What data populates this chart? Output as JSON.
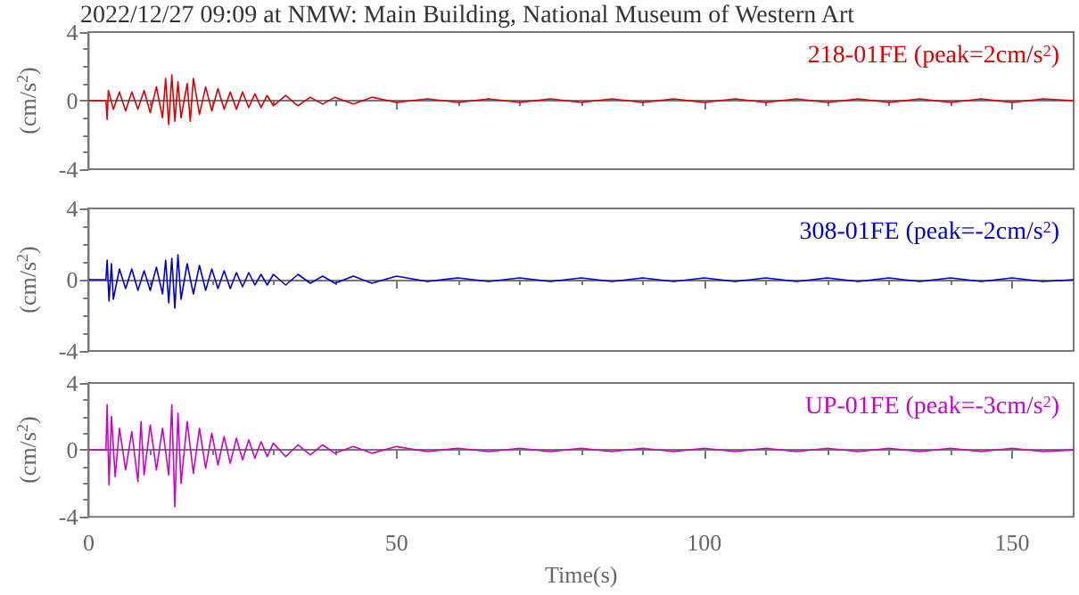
{
  "chart_data": [
    {
      "type": "line",
      "title": "2022/12/27 09:09 at NMW: Main Building, National Museum of Western Art",
      "ylabel": "(cm/s$^{2}$)",
      "xlim": [
        0,
        160
      ],
      "xticks": [
        0,
        50,
        100,
        150
      ],
      "ylim": [
        -4,
        4
      ],
      "yticks": [
        -4,
        0,
        4
      ],
      "tick_labels": "y",
      "legend": "top right",
      "marker": "none",
      "x": [
        0,
        2.8,
        3,
        3.2,
        4,
        5,
        6,
        7,
        8,
        9,
        10,
        11,
        12,
        12.5,
        13,
        13.5,
        14,
        14.5,
        15,
        16,
        16.5,
        17,
        18,
        19,
        20,
        21,
        22,
        23,
        24,
        25,
        26,
        27,
        28,
        29,
        30,
        32,
        34,
        36,
        38,
        40,
        43,
        46,
        50,
        55,
        60,
        65,
        70,
        75,
        80,
        85,
        90,
        95,
        100,
        105,
        110,
        115,
        120,
        125,
        130,
        135,
        140,
        145,
        150,
        155,
        160
      ],
      "series": [
        {
          "name": "218-01FE (peak=2cm/s$^{2}$)",
          "color": "#dd0000",
          "values": [
            0,
            0,
            -1.1,
            0.6,
            -0.5,
            0.5,
            -0.6,
            0.5,
            -0.5,
            0.6,
            -0.7,
            0.8,
            -1.0,
            1.3,
            -1.4,
            1.5,
            -1.2,
            1.1,
            -1.0,
            1.0,
            -1.2,
            1.3,
            -0.8,
            0.8,
            -0.6,
            0.7,
            -0.5,
            0.5,
            -0.5,
            0.5,
            -0.4,
            0.4,
            -0.4,
            0.3,
            -0.3,
            0.3,
            -0.3,
            0.2,
            -0.2,
            0.2,
            -0.2,
            0.2,
            -0.1,
            0.1,
            -0.1,
            0.1,
            -0.1,
            0.1,
            -0.1,
            0.1,
            -0.1,
            0.1,
            -0.1,
            0.1,
            -0.1,
            0.1,
            -0.1,
            0.1,
            -0.1,
            0.1,
            -0.1,
            0.1,
            -0.1,
            0.1,
            0
          ]
        }
      ]
    },
    {
      "type": "line",
      "ylabel": "(cm/s$^{2}$)",
      "xlim": [
        0,
        160
      ],
      "xticks": [
        0,
        50,
        100,
        150
      ],
      "ylim": [
        -4,
        4
      ],
      "yticks": [
        -4,
        0,
        4
      ],
      "tick_labels": "y",
      "legend": "top right",
      "marker": "none",
      "x": [
        0,
        2.8,
        3,
        3.3,
        3.7,
        4,
        5,
        6,
        7,
        8,
        9,
        10,
        11,
        12,
        12.5,
        13,
        13.5,
        14,
        14.5,
        15,
        16,
        17,
        18,
        19,
        20,
        21,
        22,
        23,
        24,
        25,
        26,
        27,
        28,
        29,
        30,
        32,
        34,
        36,
        38,
        40,
        43,
        46,
        50,
        55,
        60,
        65,
        70,
        75,
        80,
        85,
        90,
        95,
        100,
        105,
        110,
        115,
        120,
        125,
        130,
        135,
        140,
        145,
        150,
        155,
        160
      ],
      "series": [
        {
          "name": "308-01FE (peak=-2cm/s$^{2}$)",
          "color": "#0000cc",
          "values": [
            0,
            0,
            1.1,
            -1.2,
            0.9,
            -1.1,
            0.6,
            -0.5,
            0.6,
            -0.6,
            0.5,
            -0.6,
            0.7,
            -0.8,
            1.1,
            -1.3,
            1.2,
            -1.6,
            1.4,
            -1.1,
            0.9,
            -0.8,
            0.8,
            -0.6,
            0.6,
            -0.5,
            0.5,
            -0.5,
            0.4,
            -0.4,
            0.4,
            -0.3,
            0.3,
            -0.3,
            0.3,
            -0.3,
            0.3,
            -0.2,
            0.2,
            -0.2,
            0.2,
            -0.2,
            0.2,
            -0.1,
            0.1,
            -0.1,
            0.1,
            -0.1,
            0.1,
            -0.1,
            0.1,
            -0.1,
            0.1,
            -0.1,
            0.1,
            -0.1,
            0.1,
            -0.1,
            0.1,
            -0.1,
            0.1,
            -0.1,
            0.1,
            -0.1,
            0
          ]
        }
      ]
    },
    {
      "type": "line",
      "xlabel": "Time(s)",
      "ylabel": "(cm/s$^{2}$)",
      "xlim": [
        0,
        160
      ],
      "xticks": [
        0,
        50,
        100,
        150
      ],
      "ylim": [
        -4,
        4
      ],
      "yticks": [
        -4,
        0,
        4
      ],
      "legend": "top right",
      "marker": "none",
      "x": [
        0,
        2.8,
        3,
        3.3,
        3.7,
        4.3,
        5,
        6,
        7,
        8,
        8.5,
        9,
        10,
        11,
        12,
        13,
        13.5,
        14,
        14.5,
        15,
        16,
        17,
        18,
        19,
        20,
        21,
        22,
        23,
        24,
        25,
        26,
        27,
        28,
        29,
        30,
        32,
        34,
        36,
        38,
        40,
        43,
        46,
        50,
        55,
        60,
        65,
        70,
        75,
        80,
        85,
        90,
        95,
        100,
        105,
        110,
        115,
        120,
        125,
        130,
        135,
        140,
        145,
        150,
        155,
        160
      ],
      "series": [
        {
          "name": "UP-01FE (peak=-3cm/s$^{2}$)",
          "color": "#cc00cc",
          "values": [
            0,
            0,
            2.7,
            -2.1,
            2.0,
            -1.6,
            1.3,
            -1.2,
            1.1,
            -1.9,
            1.7,
            -1.5,
            1.5,
            -1.2,
            1.3,
            -1.5,
            2.7,
            -3.4,
            2.2,
            -2.0,
            1.7,
            -1.4,
            1.3,
            -1.1,
            1.0,
            -0.9,
            0.8,
            -0.8,
            0.7,
            -0.6,
            0.6,
            -0.5,
            0.5,
            -0.4,
            0.4,
            -0.4,
            0.3,
            -0.3,
            0.3,
            -0.2,
            0.2,
            -0.2,
            0.2,
            -0.1,
            0.1,
            -0.1,
            0.1,
            -0.1,
            0.1,
            -0.1,
            0.1,
            -0.1,
            0.1,
            -0.1,
            0.1,
            -0.1,
            0.1,
            -0.1,
            0.1,
            -0.1,
            0.1,
            -0.1,
            0.1,
            -0.1,
            0
          ]
        }
      ]
    }
  ]
}
